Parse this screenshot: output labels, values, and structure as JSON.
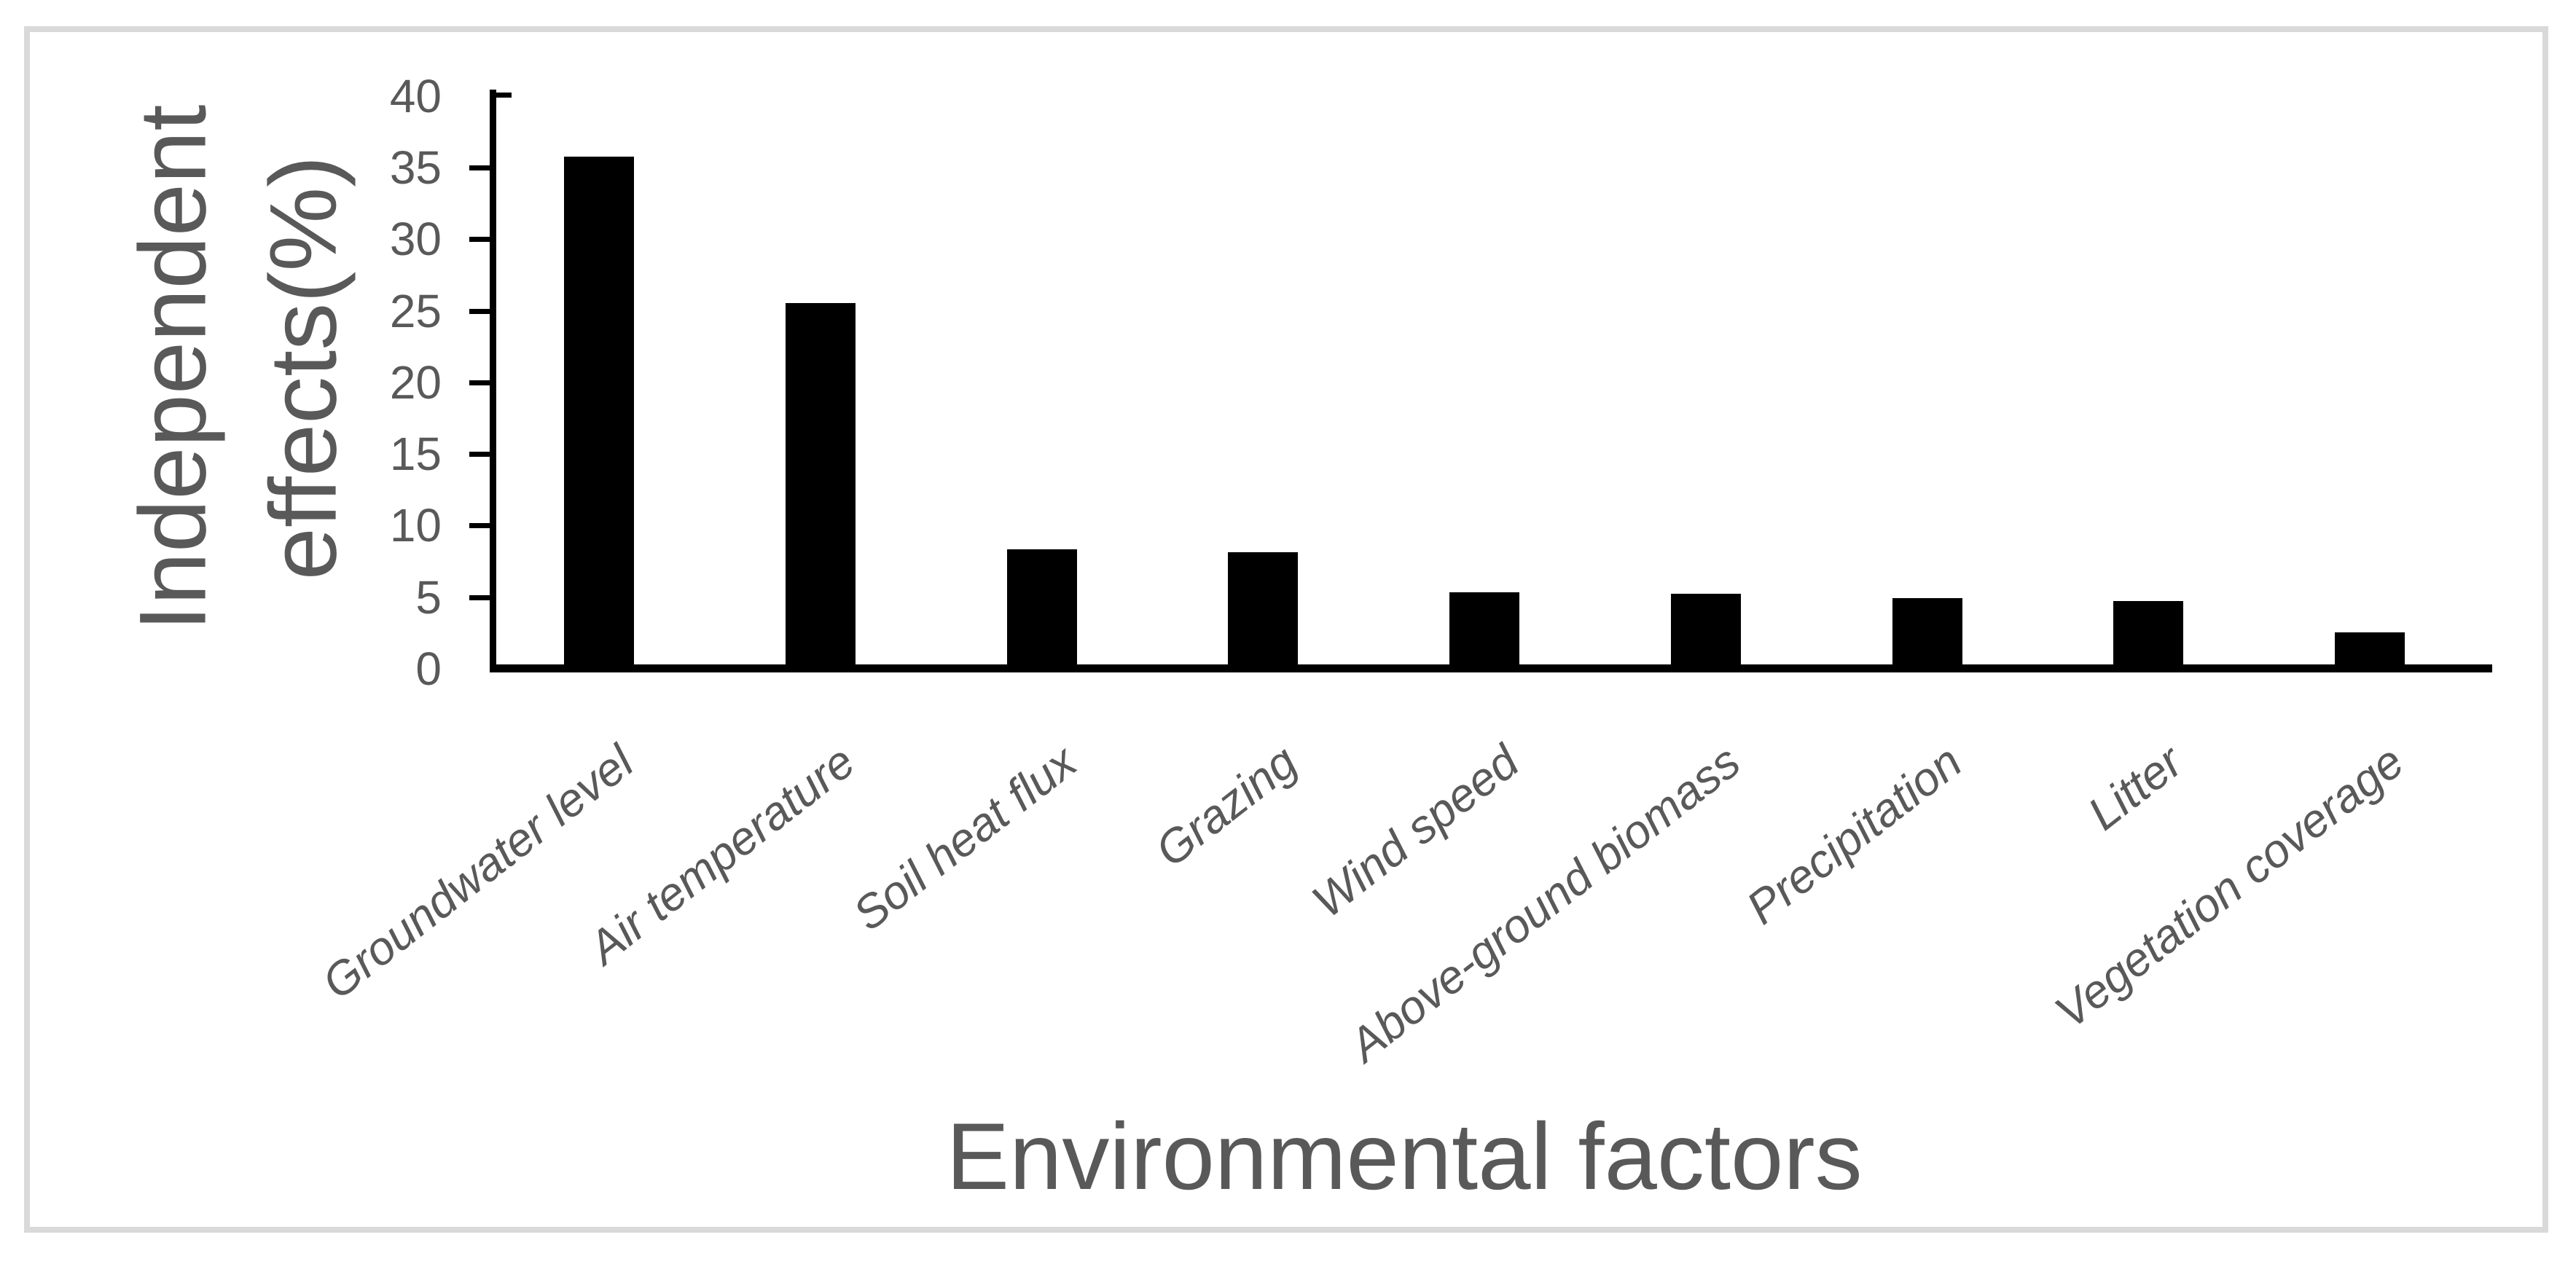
{
  "figure": {
    "background": "#ffffff",
    "border_color": "#d9d9d9",
    "text_color": "#595959",
    "axis_color": "#000000"
  },
  "titles": {
    "y_axis_line1": "Independent",
    "y_axis_line2": "effects(%)",
    "x_axis": "Environmental factors"
  },
  "chart_data": {
    "type": "bar",
    "title": "",
    "xlabel": "Environmental factors",
    "ylabel": "Independent effects(%)",
    "categories": [
      "Groundwater level",
      "Air temperature",
      "Soil heat flux",
      "Grazing",
      "Wind speed",
      "Above-ground biomass",
      "Precipitation",
      "Litter",
      "Vegetation coverage"
    ],
    "values": [
      35.5,
      25.3,
      8.1,
      7.9,
      5.1,
      5.0,
      4.7,
      4.5,
      2.3
    ],
    "bar_color": "#000000",
    "ylim": [
      0,
      40
    ],
    "ytick_step": 5,
    "ytick_labels": [
      "0",
      "5",
      "10",
      "15",
      "20",
      "25",
      "30",
      "35",
      "40"
    ],
    "grid": false,
    "legend": "none",
    "category_label_style": "italic, rotated diagonally",
    "orientation": "vertical"
  }
}
